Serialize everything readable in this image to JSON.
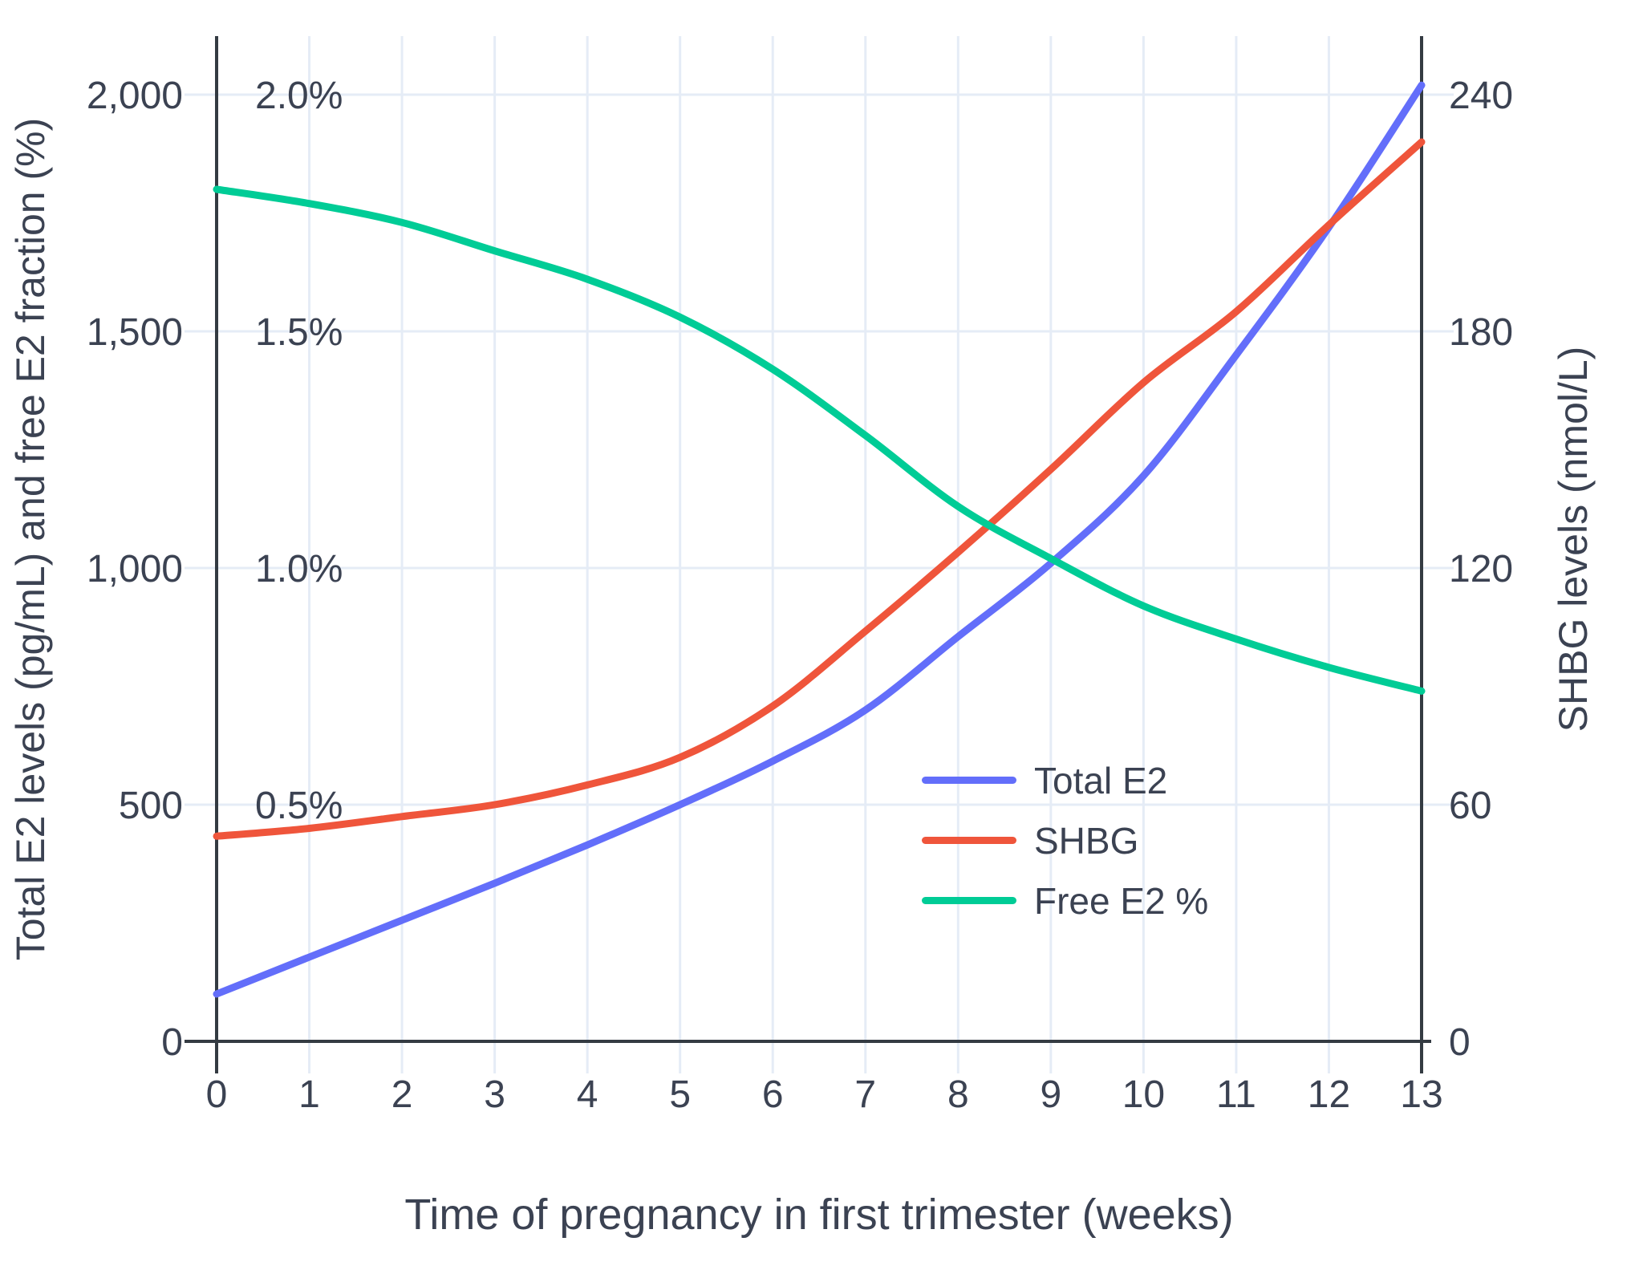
{
  "figure": {
    "background": "#ffffff",
    "text_color": "#3b4252",
    "axis_line_color": "#343b42",
    "grid_color": "#e5ecf6"
  },
  "chart_data": {
    "type": "line",
    "title": "",
    "xlabel": "Time of pregnancy in first trimester (weeks)",
    "ylabel_left": "Total E2 levels (pg/mL) and free E2 fraction (%)",
    "ylabel_right": "SHBG levels (nmol/L)",
    "xlim": [
      0,
      13
    ],
    "ylim_left": [
      0,
      2000
    ],
    "ylim_right": [
      0,
      240
    ],
    "grid": true,
    "legend_position": "inside-right-middle",
    "x": [
      0,
      1,
      2,
      3,
      4,
      5,
      6,
      7,
      8,
      9,
      10,
      11,
      12,
      13
    ],
    "x_tick_labels": [
      "0",
      "1",
      "2",
      "3",
      "4",
      "5",
      "6",
      "7",
      "8",
      "9",
      "10",
      "11",
      "12",
      "13"
    ],
    "y_left_tick_values": [
      0,
      500,
      1000,
      1500,
      2000
    ],
    "y_left_tick_labels": [
      "0",
      "500",
      "1,000",
      "1,500",
      "2,000"
    ],
    "y_left_inner_values": [
      500,
      1000,
      1500,
      2000
    ],
    "y_left_inner_labels": [
      "0.5%",
      "1.0%",
      "1.5%",
      "2.0%"
    ],
    "y_right_tick_values": [
      0,
      60,
      120,
      180,
      240
    ],
    "y_right_tick_labels": [
      "0",
      "60",
      "120",
      "180",
      "240"
    ],
    "series": [
      {
        "name": "Total E2",
        "unit": "pg/mL",
        "axis": "left",
        "to_left_units": 1,
        "color": "#636efa",
        "values": [
          100,
          178,
          256,
          334,
          415,
          500,
          592,
          700,
          855,
          1010,
          1195,
          1450,
          1720,
          2020
        ]
      },
      {
        "name": "SHBG",
        "unit": "nmol/L",
        "axis": "right",
        "to_left_units": 8.3333,
        "color": "#ef553b",
        "values": [
          52,
          54,
          57,
          60,
          65,
          72,
          85,
          104,
          124,
          145,
          167,
          185,
          207,
          228
        ]
      },
      {
        "name": "Free E2 %",
        "unit": "%",
        "axis": "left-percent",
        "to_left_units": 1000,
        "color": "#00cc96",
        "values": [
          1.8,
          1.77,
          1.73,
          1.67,
          1.61,
          1.53,
          1.42,
          1.28,
          1.13,
          1.02,
          0.92,
          0.85,
          0.79,
          0.74
        ]
      }
    ]
  }
}
